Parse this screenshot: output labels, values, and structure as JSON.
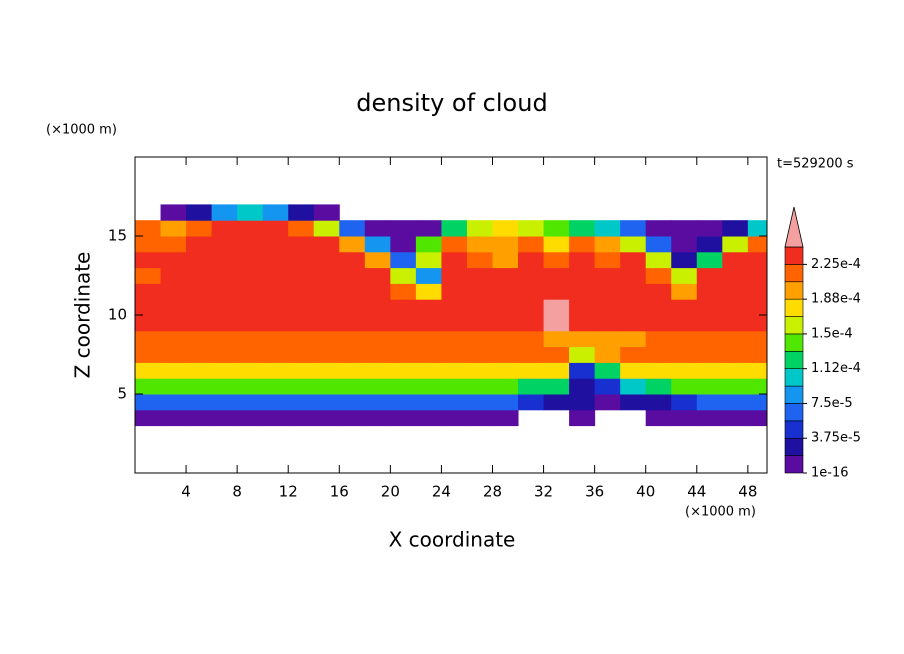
{
  "chart_data": {
    "type": "contour",
    "title": "density of cloud",
    "time_label": "t=529200 s",
    "xlabel": "X coordinate",
    "ylabel": "Z coordinate",
    "xunit": "(×1000 m)",
    "yunit": "(×1000 m)",
    "xlim": [
      0,
      49.5
    ],
    "ylim": [
      0,
      20
    ],
    "xticks": [
      4,
      8,
      12,
      16,
      20,
      24,
      28,
      32,
      36,
      40,
      44,
      48
    ],
    "yticks": [
      5,
      10,
      15
    ],
    "x": [
      1,
      3,
      5,
      7,
      9,
      11,
      13,
      15,
      17,
      19,
      21,
      23,
      25,
      27,
      29,
      31,
      33,
      35,
      37,
      39,
      41,
      43,
      45,
      47,
      49
    ],
    "y": [
      3.5,
      4.5,
      5.5,
      6.5,
      7.5,
      8.5,
      9.5,
      10.5,
      11.5,
      12.5,
      13.5,
      14.5,
      15.5,
      16.5
    ],
    "z": [
      [
        1e-05,
        1e-05,
        1e-05,
        1e-05,
        1e-05,
        1e-05,
        1e-05,
        1e-05,
        1e-05,
        1e-05,
        1e-05,
        1e-05,
        1e-05,
        1e-05,
        5e-06,
        null,
        null,
        5e-06,
        null,
        null,
        5e-06,
        1e-05,
        1e-05,
        1e-05,
        1e-05
      ],
      [
        6e-05,
        6e-05,
        6e-05,
        6e-05,
        6e-05,
        6e-05,
        6e-05,
        6e-05,
        6e-05,
        6e-05,
        6e-05,
        6e-05,
        6e-05,
        6e-05,
        6e-05,
        4e-05,
        3e-05,
        2e-05,
        1e-05,
        3e-05,
        2e-05,
        5e-05,
        6e-05,
        6e-05,
        6e-05
      ],
      [
        0.000145,
        0.000145,
        0.000145,
        0.000145,
        0.000145,
        0.000145,
        0.000145,
        0.000145,
        0.000145,
        0.000145,
        0.000145,
        0.000145,
        0.000145,
        0.000145,
        0.000145,
        0.00013,
        0.00012,
        3e-05,
        5e-05,
        0.0001,
        0.00012,
        0.000145,
        0.000145,
        0.000145,
        0.000145
      ],
      [
        0.000185,
        0.000185,
        0.000185,
        0.000185,
        0.000185,
        0.000185,
        0.000185,
        0.000185,
        0.000185,
        0.000185,
        0.000185,
        0.000185,
        0.000185,
        0.000185,
        0.000185,
        0.000185,
        0.000185,
        4e-05,
        0.00012,
        0.00017,
        0.000185,
        0.000185,
        0.000185,
        0.000185,
        0.000185
      ],
      [
        0.00021,
        0.00021,
        0.00021,
        0.00021,
        0.00021,
        0.00021,
        0.00021,
        0.00021,
        0.00021,
        0.00021,
        0.00021,
        0.00021,
        0.00021,
        0.00021,
        0.00021,
        0.00021,
        0.00021,
        0.00015,
        0.00019,
        0.00021,
        0.00021,
        0.00021,
        0.00021,
        0.00021,
        0.00021
      ],
      [
        0.00022,
        0.00022,
        0.00022,
        0.00022,
        0.00022,
        0.00022,
        0.00022,
        0.00022,
        0.00022,
        0.00022,
        0.00022,
        0.00022,
        0.00022,
        0.00022,
        0.00022,
        0.00022,
        0.0002,
        0.0002,
        0.0002,
        0.0002,
        0.00022,
        0.00022,
        0.00022,
        0.00022,
        0.00022
      ],
      [
        0.00023,
        0.00023,
        0.00023,
        0.00023,
        0.00023,
        0.00023,
        0.00023,
        0.00023,
        0.00023,
        0.00023,
        0.00023,
        0.00023,
        0.00023,
        0.00023,
        0.00023,
        0.00023,
        0.000245,
        0.00023,
        0.00023,
        0.00023,
        0.00023,
        0.00023,
        0.00023,
        0.00023,
        0.00023
      ],
      [
        0.00023,
        0.00023,
        0.00023,
        0.00023,
        0.00023,
        0.00023,
        0.00023,
        0.00023,
        0.00023,
        0.00023,
        0.00023,
        0.00023,
        0.00023,
        0.00023,
        0.00023,
        0.00023,
        0.000245,
        0.00023,
        0.00023,
        0.00023,
        0.00023,
        0.00023,
        0.00023,
        0.00023,
        0.00023
      ],
      [
        0.00023,
        0.00023,
        0.00023,
        0.00023,
        0.00023,
        0.00023,
        0.00023,
        0.00023,
        0.00023,
        0.00023,
        0.00021,
        0.00017,
        0.00023,
        0.00023,
        0.00023,
        0.00023,
        0.00023,
        0.00023,
        0.00023,
        0.00023,
        0.00023,
        0.00019,
        0.00023,
        0.00023,
        0.00023
      ],
      [
        0.00022,
        0.00023,
        0.00023,
        0.00023,
        0.00023,
        0.00023,
        0.00023,
        0.00023,
        0.00023,
        0.00023,
        0.00016,
        9e-05,
        0.00023,
        0.00023,
        0.00023,
        0.00023,
        0.00023,
        0.00023,
        0.00023,
        0.00023,
        0.00022,
        0.00015,
        0.00023,
        0.00023,
        0.00023
      ],
      [
        0.00023,
        0.00023,
        0.00023,
        0.00023,
        0.00023,
        0.00023,
        0.00023,
        0.00023,
        0.00023,
        0.0002,
        6e-05,
        0.00015,
        0.00023,
        0.00022,
        0.0002,
        0.00023,
        0.00021,
        0.00023,
        0.00021,
        0.00023,
        0.00016,
        3e-05,
        0.00012,
        0.00023,
        0.00023
      ],
      [
        0.00022,
        0.00022,
        0.00023,
        0.00023,
        0.00023,
        0.00023,
        0.00023,
        0.00023,
        0.00019,
        8e-05,
        1e-05,
        0.00014,
        0.00022,
        0.0002,
        0.00019,
        0.00021,
        0.00018,
        0.00022,
        0.00019,
        0.00016,
        6e-05,
        1e-05,
        2e-05,
        0.00015,
        0.00022
      ],
      [
        0.00021,
        0.0002,
        0.00022,
        0.00023,
        0.00023,
        0.00023,
        0.00022,
        0.00015,
        6e-05,
        1e-05,
        1e-05,
        1e-05,
        0.00012,
        0.00016,
        0.00017,
        0.00015,
        0.00014,
        0.00012,
        0.0001,
        6e-05,
        1e-05,
        1e-05,
        1e-05,
        3e-05,
        0.0001
      ],
      [
        null,
        1e-05,
        3e-05,
        9e-05,
        0.0001,
        8e-05,
        3e-05,
        1e-05,
        null,
        null,
        null,
        null,
        null,
        null,
        null,
        null,
        null,
        null,
        null,
        null,
        null,
        null,
        null,
        null,
        null
      ]
    ],
    "levels": [
      1e-16,
      1.875e-05,
      3.75e-05,
      5.625e-05,
      7.5e-05,
      9.375e-05,
      0.0001125,
      0.00013125,
      0.00015,
      0.00016875,
      0.0001875,
      0.00020625,
      0.000225,
      0.00024375
    ],
    "colors": [
      "#5a0ca0",
      "#2010a0",
      "#1830d0",
      "#1e64f0",
      "#1496f0",
      "#00c8c8",
      "#00d264",
      "#50e600",
      "#c8f000",
      "#ffdc00",
      "#ffa000",
      "#ff6400",
      "#f02d1e"
    ],
    "extend_color": "#f5a0a0",
    "colorbar_ticks": [
      1e-16,
      {
        "value": 3.75e-05,
        "label": "3.75e-5"
      },
      {
        "value": 7.5e-05,
        "label": "7.5e-5"
      },
      {
        "value": 0.0001125,
        "label": "1.12e-4"
      },
      {
        "value": 0.00015,
        "label": "1.5e-4"
      },
      {
        "value": 0.0001875,
        "label": "1.88e-4"
      },
      {
        "value": 0.000225,
        "label": "2.25e-4"
      }
    ]
  }
}
